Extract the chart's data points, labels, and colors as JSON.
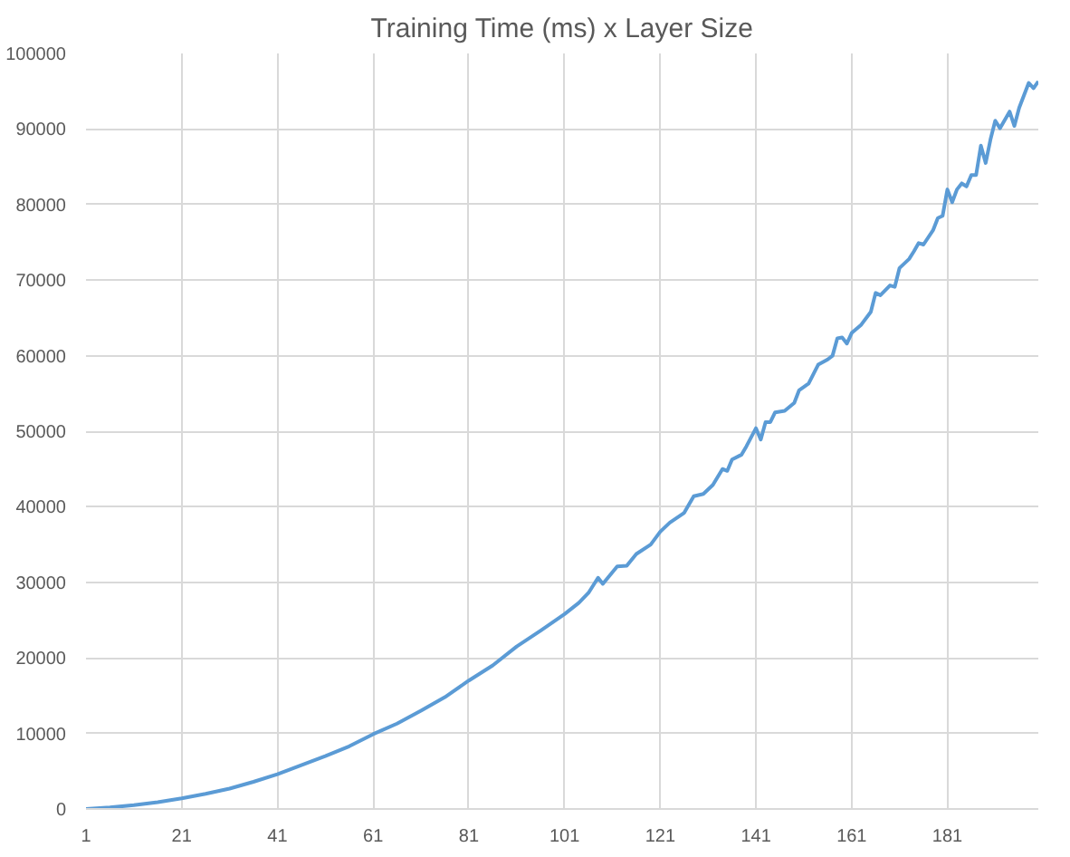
{
  "chart_data": {
    "type": "line",
    "title": "Training Time (ms) x Layer Size",
    "x": [
      1,
      6,
      11,
      16,
      21,
      26,
      31,
      36,
      41,
      46,
      51,
      56,
      61,
      66,
      71,
      76,
      81,
      86,
      91,
      96,
      101,
      104,
      106,
      108,
      109,
      112,
      114,
      116,
      119,
      121,
      123,
      126,
      128,
      130,
      132,
      134,
      135,
      136,
      138,
      139,
      141,
      142,
      143,
      144,
      145,
      147,
      149,
      150,
      152,
      154,
      156,
      157,
      158,
      159,
      160,
      161,
      163,
      165,
      166,
      167,
      169,
      170,
      171,
      173,
      174,
      175,
      176,
      178,
      179,
      180,
      181,
      182,
      183,
      184,
      185,
      186,
      187,
      188,
      189,
      190,
      191,
      192,
      194,
      195,
      196,
      198,
      199,
      200
    ],
    "series": [
      {
        "color": "#5b9bd5",
        "values": [
          0,
          200,
          500,
          900,
          1400,
          2000,
          2700,
          3600,
          4600,
          5800,
          7000,
          8300,
          9900,
          11300,
          13000,
          14800,
          17000,
          19000,
          21500,
          23600,
          25800,
          27300,
          28600,
          30600,
          29800,
          32100,
          32200,
          33750,
          35000,
          36700,
          37900,
          39200,
          41400,
          41700,
          42900,
          45000,
          44750,
          46250,
          46900,
          48000,
          50400,
          48900,
          51200,
          51200,
          52500,
          52700,
          53750,
          55400,
          56300,
          58800,
          59500,
          60000,
          62300,
          62400,
          61600,
          63000,
          64100,
          65800,
          68300,
          68000,
          69300,
          69100,
          71600,
          72800,
          73800,
          74900,
          74700,
          76600,
          78200,
          78500,
          82000,
          80300,
          82000,
          82800,
          82400,
          83900,
          83900,
          87800,
          85500,
          88600,
          91100,
          90100,
          92300,
          90400,
          92800,
          96100,
          95400,
          96300
        ]
      }
    ],
    "xlim": [
      1,
      200
    ],
    "ylim": [
      0,
      100000
    ],
    "xticks": [
      1,
      21,
      41,
      61,
      81,
      101,
      121,
      141,
      161,
      181
    ],
    "yticks": [
      0,
      10000,
      20000,
      30000,
      40000,
      50000,
      60000,
      70000,
      80000,
      90000,
      100000
    ],
    "grid": true,
    "marker": "none",
    "line_style": "solid"
  }
}
